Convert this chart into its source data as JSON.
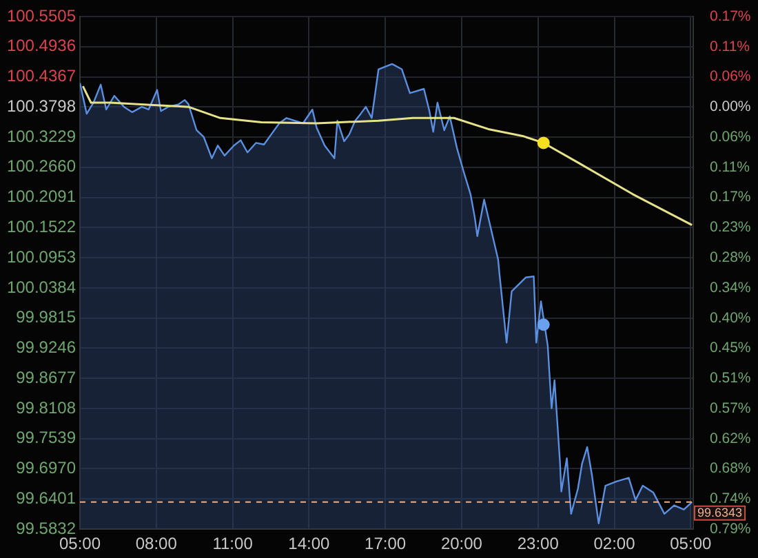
{
  "chart_data": {
    "type": "area",
    "xlim": [
      "2000-01-01T05:00",
      "2000-01-02T05:06"
    ],
    "xticks": [
      {
        "value": "2000-01-01T05:00",
        "label": "05:00"
      },
      {
        "value": "2000-01-01T08:00",
        "label": "08:00"
      },
      {
        "value": "2000-01-01T11:00",
        "label": "11:00"
      },
      {
        "value": "2000-01-01T14:00",
        "label": "14:00"
      },
      {
        "value": "2000-01-01T17:00",
        "label": "17:00"
      },
      {
        "value": "2000-01-01T20:00",
        "label": "20:00"
      },
      {
        "value": "2000-01-01T23:00",
        "label": "23:00"
      },
      {
        "value": "2000-01-02T02:00",
        "label": "02:00"
      },
      {
        "value": "2000-01-02T05:00",
        "label": "05:00"
      }
    ],
    "ylim": [
      99.5832,
      100.5505
    ],
    "yticks": [
      100.5505,
      100.4936,
      100.4367,
      100.3798,
      100.3229,
      {
        "value": 100.266,
        "label": "100.2660"
      },
      100.2091,
      100.1522,
      100.0953,
      100.0384,
      99.9815,
      99.9246,
      99.8677,
      99.8108,
      99.7539,
      {
        "value": 99.697,
        "label": "99.6970"
      },
      99.6401,
      99.5832
    ],
    "y2lim": [
      -0.7936,
      0.1701
    ],
    "y2ticks": [
      {
        "value": 0.1701,
        "label": "0.17%"
      },
      {
        "value": 0.1134,
        "label": "0.11%"
      },
      {
        "value": 0.0567,
        "label": "0.06%"
      },
      {
        "value": 0,
        "label": "0.00%"
      },
      {
        "value": -0.0567,
        "label": "0.06%"
      },
      {
        "value": -0.1134,
        "label": "0.11%"
      },
      {
        "value": -0.1701,
        "label": "0.17%"
      },
      {
        "value": -0.2268,
        "label": "0.23%"
      },
      {
        "value": -0.2835,
        "label": "0.28%"
      },
      {
        "value": -0.3402,
        "label": "0.34%"
      },
      {
        "value": -0.3969,
        "label": "0.40%"
      },
      {
        "value": -0.4536,
        "label": "0.45%"
      },
      {
        "value": -0.5103,
        "label": "0.51%"
      },
      {
        "value": -0.567,
        "label": "0.57%"
      },
      {
        "value": -0.6237,
        "label": "0.62%"
      },
      {
        "value": -0.6804,
        "label": "0.68%"
      },
      {
        "value": -0.7371,
        "label": "0.74%"
      },
      {
        "value": -0.7936,
        "label": "0.79%"
      }
    ],
    "grid": true,
    "legend": false,
    "series": [
      {
        "color": "#5b8fe0",
        "x": [
          "2000-01-01T05:00",
          "2000-01-01T05:16",
          "2000-01-01T05:32",
          "2000-01-01T05:49",
          "2000-01-01T06:02",
          "2000-01-01T06:21",
          "2000-01-01T06:44",
          "2000-01-01T07:03",
          "2000-01-01T07:26",
          "2000-01-01T07:42",
          "2000-01-01T08:02",
          "2000-01-01T08:11",
          "2000-01-01T08:28",
          "2000-01-01T08:53",
          "2000-01-01T09:07",
          "2000-01-01T09:16",
          "2000-01-01T09:35",
          "2000-01-01T09:52",
          "2000-01-01T10:11",
          "2000-01-01T10:25",
          "2000-01-01T10:41",
          "2000-01-01T11:03",
          "2000-01-01T11:19",
          "2000-01-01T11:35",
          "2000-01-01T11:55",
          "2000-01-01T12:14",
          "2000-01-01T12:31",
          "2000-01-01T12:50",
          "2000-01-01T13:07",
          "2000-01-01T13:26",
          "2000-01-01T13:46",
          "2000-01-01T14:08",
          "2000-01-01T14:18",
          "2000-01-01T14:37",
          "2000-01-01T15:00",
          "2000-01-01T15:07",
          "2000-01-01T15:23",
          "2000-01-01T15:35",
          "2000-01-01T15:49",
          "2000-01-01T16:02",
          "2000-01-01T16:14",
          "2000-01-01T16:28",
          "2000-01-01T16:44",
          "2000-01-01T17:16",
          "2000-01-01T17:39",
          "2000-01-01T17:58",
          "2000-01-01T18:31",
          "2000-01-01T18:44",
          "2000-01-01T18:53",
          "2000-01-01T19:03",
          "2000-01-01T19:19",
          "2000-01-01T19:32",
          "2000-01-01T19:49",
          "2000-01-01T20:05",
          "2000-01-01T20:21",
          "2000-01-01T20:31",
          "2000-01-01T20:37",
          "2000-01-01T20:53",
          "2000-01-01T21:26",
          "2000-01-01T21:29",
          "2000-01-01T21:46",
          "2000-01-01T21:58",
          "2000-01-01T22:31",
          "2000-01-01T22:50",
          "2000-01-01T22:56",
          "2000-01-01T23:07",
          "2000-01-01T23:23",
          "2000-01-01T23:32",
          "2000-01-01T23:39",
          "2000-01-01T23:52",
          "2000-01-01T23:55",
          "2000-01-02T00:08",
          "2000-01-02T00:18",
          "2000-01-02T00:34",
          "2000-01-02T00:44",
          "2000-01-02T00:56",
          "2000-01-02T01:07",
          "2000-01-02T01:23",
          "2000-01-02T01:39",
          "2000-01-02T02:05",
          "2000-01-02T02:34",
          "2000-01-02T02:50",
          "2000-01-02T03:07",
          "2000-01-02T03:32",
          "2000-01-02T03:58",
          "2000-01-02T04:21",
          "2000-01-02T04:44",
          "2000-01-02T05:03"
        ],
        "values": [
          100.425,
          100.367,
          100.388,
          100.422,
          100.375,
          100.401,
          100.38,
          100.37,
          100.38,
          100.375,
          100.412,
          100.372,
          100.38,
          100.385,
          100.393,
          100.385,
          100.336,
          100.323,
          100.283,
          100.307,
          100.288,
          100.307,
          100.317,
          100.294,
          100.312,
          100.309,
          100.328,
          100.349,
          100.359,
          100.354,
          100.349,
          100.375,
          100.341,
          100.307,
          100.283,
          100.354,
          100.315,
          100.328,
          100.354,
          100.367,
          100.38,
          100.359,
          100.451,
          100.461,
          100.451,
          100.406,
          100.414,
          100.372,
          100.333,
          100.388,
          100.336,
          100.362,
          100.302,
          100.257,
          100.215,
          100.171,
          100.136,
          100.205,
          100.092,
          100.066,
          99.935,
          100.032,
          100.058,
          100.06,
          99.935,
          100.013,
          99.929,
          99.811,
          99.864,
          99.707,
          99.654,
          99.717,
          99.612,
          99.659,
          99.707,
          99.738,
          99.686,
          99.594,
          99.665,
          99.673,
          99.68,
          99.638,
          99.665,
          99.652,
          99.612,
          99.628,
          99.62,
          99.634
        ]
      },
      {
        "type": "line",
        "color": "#e6e28a",
        "x": [
          "2000-01-01T05:07",
          "2000-01-01T05:26",
          "2000-01-01T06:11",
          "2000-01-01T07:16",
          "2000-01-01T09:16",
          "2000-01-01T10:31",
          "2000-01-01T12:08",
          "2000-01-01T14:18",
          "2000-01-01T16:44",
          "2000-01-01T18:05",
          "2000-01-01T19:42",
          "2000-01-01T21:03",
          "2000-01-01T22:24",
          "2000-01-01T23:13",
          "2000-01-02T00:34",
          "2000-01-02T02:44",
          "2000-01-02T05:03"
        ],
        "values": [
          100.419,
          100.388,
          100.388,
          100.385,
          100.38,
          100.359,
          100.351,
          100.349,
          100.354,
          100.359,
          100.359,
          100.338,
          100.325,
          100.312,
          100.275,
          100.215,
          100.157
        ]
      },
      {
        "type": "scatter",
        "color": "#f5e020",
        "x": [
          "2000-01-01T23:13"
        ],
        "values": [
          100.312
        ]
      },
      {
        "type": "scatter",
        "color": "#6aa0f0",
        "x": [
          "2000-01-01T23:13"
        ],
        "values": [
          99.969
        ]
      }
    ],
    "ref_lines": [
      {
        "axis": "y",
        "value": 99.6343,
        "label": "99.6343",
        "color": "#e8b090",
        "line_style": "dashed"
      }
    ]
  }
}
